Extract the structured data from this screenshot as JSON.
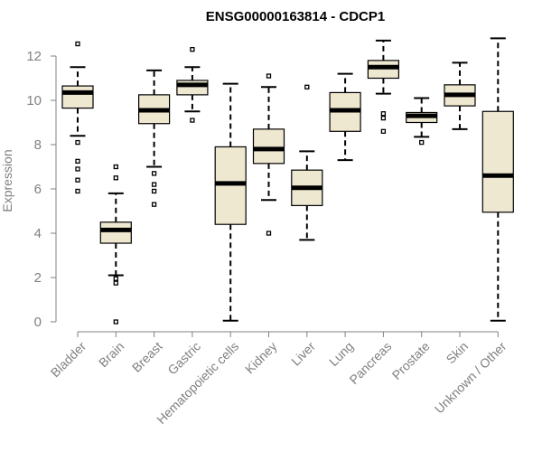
{
  "chart_data": {
    "type": "boxplot",
    "title": "ENSG00000163814 - CDCP1",
    "xlabel": "",
    "ylabel": "Expression",
    "ylim": [
      0,
      12.8
    ],
    "yticks": [
      0,
      2,
      4,
      6,
      8,
      10,
      12
    ],
    "categories": [
      "Bladder",
      "Brain",
      "Breast",
      "Gastric",
      "Hematopoietic cells",
      "Kidney",
      "Liver",
      "Lung",
      "Pancreas",
      "Prostate",
      "Skin",
      "Unknown / Other"
    ],
    "boxes": [
      {
        "category": "Bladder",
        "whisker_low": 8.4,
        "q1": 9.65,
        "median": 10.35,
        "q3": 10.65,
        "whisker_high": 11.5,
        "outliers": [
          12.55,
          8.1,
          7.25,
          6.9,
          6.4,
          5.9
        ]
      },
      {
        "category": "Brain",
        "whisker_low": 2.1,
        "q1": 3.55,
        "median": 4.15,
        "q3": 4.5,
        "whisker_high": 5.8,
        "outliers": [
          7.0,
          6.5,
          1.95,
          1.75,
          0.0
        ]
      },
      {
        "category": "Breast",
        "whisker_low": 7.0,
        "q1": 8.95,
        "median": 9.55,
        "q3": 10.25,
        "whisker_high": 11.35,
        "outliers": [
          6.7,
          6.2,
          5.9,
          5.3
        ]
      },
      {
        "category": "Gastric",
        "whisker_low": 9.5,
        "q1": 10.25,
        "median": 10.7,
        "q3": 10.9,
        "whisker_high": 11.5,
        "outliers": [
          12.3,
          9.1
        ]
      },
      {
        "category": "Hematopoietic cells",
        "whisker_low": 0.05,
        "q1": 4.4,
        "median": 6.25,
        "q3": 7.9,
        "whisker_high": 10.75,
        "outliers": []
      },
      {
        "category": "Kidney",
        "whisker_low": 5.5,
        "q1": 7.15,
        "median": 7.8,
        "q3": 8.7,
        "whisker_high": 10.6,
        "outliers": [
          11.1,
          4.0
        ]
      },
      {
        "category": "Liver",
        "whisker_low": 3.7,
        "q1": 5.25,
        "median": 6.05,
        "q3": 6.85,
        "whisker_high": 7.7,
        "outliers": [
          10.6
        ]
      },
      {
        "category": "Lung",
        "whisker_low": 7.3,
        "q1": 8.6,
        "median": 9.55,
        "q3": 10.35,
        "whisker_high": 11.2,
        "outliers": []
      },
      {
        "category": "Pancreas",
        "whisker_low": 10.3,
        "q1": 11.0,
        "median": 11.5,
        "q3": 11.8,
        "whisker_high": 12.7,
        "outliers": [
          9.4,
          9.2,
          8.6
        ]
      },
      {
        "category": "Prostate",
        "whisker_low": 8.35,
        "q1": 9.0,
        "median": 9.3,
        "q3": 9.45,
        "whisker_high": 10.1,
        "outliers": [
          8.1
        ]
      },
      {
        "category": "Skin",
        "whisker_low": 8.7,
        "q1": 9.75,
        "median": 10.25,
        "q3": 10.7,
        "whisker_high": 11.7,
        "outliers": []
      },
      {
        "category": "Unknown / Other",
        "whisker_low": 0.05,
        "q1": 4.95,
        "median": 6.6,
        "q3": 9.5,
        "whisker_high": 12.8,
        "outliers": []
      }
    ],
    "box_fill": "#efe8d1",
    "box_stroke": "#000000",
    "axis_color": "#808080",
    "grid": false,
    "legend": "none"
  }
}
